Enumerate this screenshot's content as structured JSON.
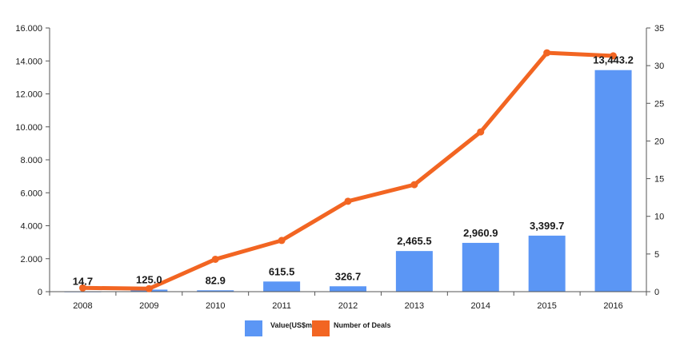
{
  "chart_data": {
    "type": "bar+line",
    "categories": [
      "2008",
      "2009",
      "2010",
      "2011",
      "2012",
      "2013",
      "2014",
      "2015",
      "2016"
    ],
    "series": [
      {
        "name": "Value(US$mn)",
        "type": "bar",
        "axis": "left",
        "color": "#5b96f5",
        "values": [
          14.7,
          125.0,
          82.9,
          615.5,
          326.7,
          2465.5,
          2960.9,
          3399.7,
          13443.2
        ],
        "data_labels": [
          "14.7",
          "125.0",
          "82.9",
          "615.5",
          "326.7",
          "2,465.5",
          "2,960.9",
          "3,399.7",
          "13,443.2"
        ]
      },
      {
        "name": "Number of Deals",
        "type": "line",
        "axis": "right",
        "color": "#f26522",
        "values": [
          0.5,
          0.4,
          4.3,
          6.8,
          12.0,
          14.2,
          21.2,
          31.7,
          31.3
        ]
      }
    ],
    "y_left": {
      "ylim": [
        0,
        16000
      ],
      "tick_values": [
        0,
        2000,
        4000,
        6000,
        8000,
        10000,
        12000,
        14000,
        16000
      ],
      "tick_labels": [
        "0",
        "2.000",
        "4.000",
        "6.000",
        "8.000",
        "10.000",
        "12.000",
        "14.000",
        "16.000"
      ]
    },
    "y_right": {
      "ylim": [
        0,
        35
      ],
      "tick_values": [
        0,
        5,
        10,
        15,
        20,
        25,
        30,
        35
      ],
      "tick_labels": [
        "0",
        "5",
        "10",
        "15",
        "20",
        "25",
        "30",
        "35"
      ]
    },
    "grid": false,
    "legend_position": "bottom-center",
    "title": "",
    "xlabel": "",
    "ylabel": ""
  }
}
